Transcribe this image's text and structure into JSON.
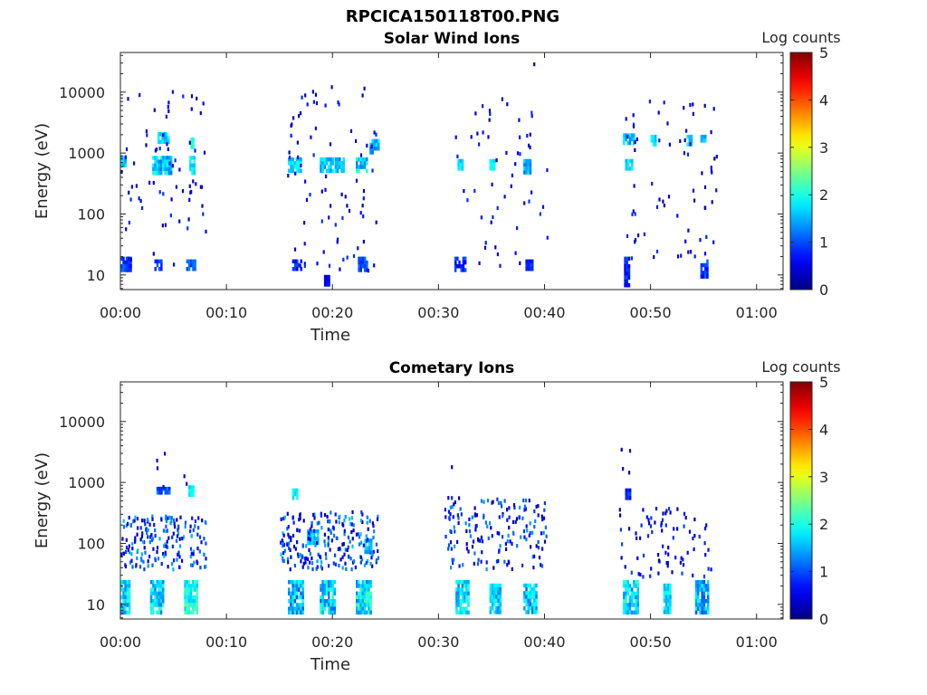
{
  "figure_title": "RPCICA150118T00.PNG",
  "colors": {
    "axis": "#262626",
    "colormap": "jet",
    "background": "#ffffff"
  },
  "chart_data": [
    {
      "type": "heatmap",
      "title": "Solar Wind Ions",
      "xlabel": "Time",
      "ylabel": "Energy (eV)",
      "colorbar_label": "Log counts",
      "colorbar_range": [
        0,
        5
      ],
      "colorbar_ticks": [
        "0",
        "1",
        "2",
        "3",
        "4",
        "5"
      ],
      "x_ticks": [
        "00:00",
        "00:10",
        "00:20",
        "00:30",
        "00:40",
        "00:50",
        "01:00"
      ],
      "y_ticks": [
        "10",
        "100",
        "1000",
        "10000"
      ],
      "xlim_minutes": [
        0,
        62.5
      ],
      "ylim_log10_eV": [
        0.76,
        4.65
      ],
      "y_scale": "log",
      "clusters": [
        {
          "t": [
            0,
            0.5
          ],
          "e": [
            600,
            900
          ],
          "v": [
            1.2,
            1.9
          ]
        },
        {
          "t": [
            3,
            4.8
          ],
          "e": [
            500,
            900
          ],
          "v": [
            1.2,
            2.1
          ]
        },
        {
          "t": [
            3.5,
            4.5
          ],
          "e": [
            1600,
            2200
          ],
          "v": [
            1.3,
            2.0
          ]
        },
        {
          "t": [
            6.5,
            6.9
          ],
          "e": [
            500,
            900
          ],
          "v": [
            1.5,
            2.2
          ]
        },
        {
          "t": [
            6.6,
            6.9
          ],
          "e": [
            1200,
            1800
          ],
          "v": [
            1.8,
            2.3
          ]
        },
        {
          "t": [
            15.8,
            17.0
          ],
          "e": [
            550,
            850
          ],
          "v": [
            1.3,
            2.0
          ]
        },
        {
          "t": [
            18.8,
            20.0
          ],
          "e": [
            550,
            850
          ],
          "v": [
            1.2,
            2.0
          ]
        },
        {
          "t": [
            20.2,
            21.0
          ],
          "e": [
            550,
            850
          ],
          "v": [
            1.2,
            1.8
          ]
        },
        {
          "t": [
            22.2,
            23.2
          ],
          "e": [
            500,
            850
          ],
          "v": [
            1.2,
            2.1
          ]
        },
        {
          "t": [
            23.5,
            24.3
          ],
          "e": [
            1100,
            1700
          ],
          "v": [
            1.2,
            1.9
          ]
        },
        {
          "t": [
            31.8,
            32.2
          ],
          "e": [
            550,
            800
          ],
          "v": [
            1.4,
            2.0
          ]
        },
        {
          "t": [
            34.8,
            35.2
          ],
          "e": [
            600,
            800
          ],
          "v": [
            1.6,
            2.1
          ]
        },
        {
          "t": [
            38,
            38.6
          ],
          "e": [
            500,
            800
          ],
          "v": [
            1.2,
            1.8
          ]
        },
        {
          "t": [
            47.4,
            48.4
          ],
          "e": [
            1500,
            2100
          ],
          "v": [
            1.3,
            2.0
          ]
        },
        {
          "t": [
            47.6,
            48.2
          ],
          "e": [
            550,
            800
          ],
          "v": [
            1.4,
            2.0
          ]
        },
        {
          "t": [
            50,
            50.5
          ],
          "e": [
            1400,
            2000
          ],
          "v": [
            1.4,
            2.0
          ]
        },
        {
          "t": [
            53.4,
            53.9
          ],
          "e": [
            1500,
            2000
          ],
          "v": [
            1.4,
            1.9
          ]
        },
        {
          "t": [
            54.7,
            55.1
          ],
          "e": [
            1600,
            2000
          ],
          "v": [
            1.3,
            1.8
          ]
        },
        {
          "t": [
            0,
            0.6
          ],
          "e": [
            12,
            20
          ],
          "v": [
            0.6,
            1.2
          ]
        },
        {
          "t": [
            0.5,
            1.0
          ],
          "e": [
            12,
            20
          ],
          "v": [
            0.6,
            1.0
          ]
        },
        {
          "t": [
            3.2,
            3.8
          ],
          "e": [
            12,
            18
          ],
          "v": [
            0.6,
            1.1
          ]
        },
        {
          "t": [
            6.2,
            7.0
          ],
          "e": [
            12,
            18
          ],
          "v": [
            0.8,
            1.3
          ]
        },
        {
          "t": [
            16.2,
            17.0
          ],
          "e": [
            12,
            18
          ],
          "v": [
            0.5,
            1.1
          ]
        },
        {
          "t": [
            19.2,
            19.6
          ],
          "e": [
            7,
            10
          ],
          "v": [
            0.4,
            0.9
          ]
        },
        {
          "t": [
            22.4,
            23.2
          ],
          "e": [
            12,
            20
          ],
          "v": [
            0.8,
            1.3
          ]
        },
        {
          "t": [
            31.5,
            32.5
          ],
          "e": [
            12,
            20
          ],
          "v": [
            0.6,
            1.1
          ]
        },
        {
          "t": [
            38.2,
            38.8
          ],
          "e": [
            12,
            18
          ],
          "v": [
            0.6,
            1.0
          ]
        },
        {
          "t": [
            47.5,
            48.0
          ],
          "e": [
            7,
            20
          ],
          "v": [
            0.5,
            1.1
          ]
        },
        {
          "t": [
            54.7,
            55.3
          ],
          "e": [
            10,
            18
          ],
          "v": [
            0.6,
            1.2
          ]
        }
      ],
      "scatter": [
        {
          "t": [
            0,
            8.2
          ],
          "e": [
            15,
            14000
          ],
          "n": 70,
          "v": [
            0.2,
            0.9
          ]
        },
        {
          "t": [
            15.7,
            24.3
          ],
          "e": [
            12,
            14000
          ],
          "n": 80,
          "v": [
            0.2,
            0.9
          ]
        },
        {
          "t": [
            31.5,
            40.2
          ],
          "e": [
            15,
            9000
          ],
          "n": 55,
          "v": [
            0.2,
            0.9
          ]
        },
        {
          "t": [
            47.2,
            56.2
          ],
          "e": [
            20,
            9000
          ],
          "n": 70,
          "v": [
            0.2,
            0.9
          ]
        },
        {
          "t": [
            38.8,
            39.1
          ],
          "e": [
            30000,
            32000
          ],
          "n": 1,
          "v": [
            0.3,
            0.4
          ]
        }
      ]
    },
    {
      "type": "heatmap",
      "title": "Cometary Ions",
      "xlabel": "Time",
      "ylabel": "Energy (eV)",
      "colorbar_label": "Log counts",
      "colorbar_range": [
        0,
        5
      ],
      "colorbar_ticks": [
        "0",
        "1",
        "2",
        "3",
        "4",
        "5"
      ],
      "x_ticks": [
        "00:00",
        "00:10",
        "00:20",
        "00:30",
        "00:40",
        "00:50",
        "01:00"
      ],
      "y_ticks": [
        "10",
        "100",
        "1000",
        "10000"
      ],
      "xlim_minutes": [
        0,
        62.5
      ],
      "ylim_log10_eV": [
        0.76,
        4.65
      ],
      "y_scale": "log",
      "clusters": [
        {
          "t": [
            0,
            0.8
          ],
          "e": [
            7,
            25
          ],
          "v": [
            1.2,
            2.2
          ]
        },
        {
          "t": [
            2.8,
            4.0
          ],
          "e": [
            7,
            25
          ],
          "v": [
            1.2,
            2.2
          ]
        },
        {
          "t": [
            6.0,
            7.2
          ],
          "e": [
            7,
            25
          ],
          "v": [
            1.6,
            2.4
          ]
        },
        {
          "t": [
            15.8,
            17.2
          ],
          "e": [
            7,
            25
          ],
          "v": [
            1.0,
            2.1
          ]
        },
        {
          "t": [
            18.8,
            20.2
          ],
          "e": [
            7,
            25
          ],
          "v": [
            1.1,
            2.2
          ]
        },
        {
          "t": [
            22.2,
            23.6
          ],
          "e": [
            7,
            25
          ],
          "v": [
            1.2,
            2.3
          ]
        },
        {
          "t": [
            31.6,
            32.8
          ],
          "e": [
            7,
            25
          ],
          "v": [
            1.2,
            2.2
          ]
        },
        {
          "t": [
            34.8,
            35.8
          ],
          "e": [
            8,
            22
          ],
          "v": [
            1.2,
            2.0
          ]
        },
        {
          "t": [
            38.0,
            39.2
          ],
          "e": [
            8,
            22
          ],
          "v": [
            1.0,
            2.0
          ]
        },
        {
          "t": [
            47.4,
            48.8
          ],
          "e": [
            7,
            25
          ],
          "v": [
            1.2,
            2.2
          ]
        },
        {
          "t": [
            51.2,
            51.8
          ],
          "e": [
            7,
            22
          ],
          "v": [
            1.4,
            2.1
          ]
        },
        {
          "t": [
            54.2,
            55.4
          ],
          "e": [
            7,
            25
          ],
          "v": [
            1.0,
            2.0
          ]
        },
        {
          "t": [
            17.6,
            18.6
          ],
          "e": [
            100,
            170
          ],
          "v": [
            1.2,
            1.9
          ]
        },
        {
          "t": [
            23.0,
            23.6
          ],
          "e": [
            70,
            120
          ],
          "v": [
            1.3,
            1.8
          ]
        },
        {
          "t": [
            3.4,
            4.6
          ],
          "e": [
            700,
            850
          ],
          "v": [
            0.8,
            1.3
          ]
        },
        {
          "t": [
            6.4,
            6.8
          ],
          "e": [
            650,
            900
          ],
          "v": [
            1.6,
            2.0
          ]
        },
        {
          "t": [
            16.2,
            16.6
          ],
          "e": [
            550,
            800
          ],
          "v": [
            1.6,
            2.0
          ]
        },
        {
          "t": [
            47.6,
            48.0
          ],
          "e": [
            600,
            800
          ],
          "v": [
            0.6,
            1.0
          ]
        }
      ],
      "scatter": [
        {
          "t": [
            0,
            8.0
          ],
          "e": [
            40,
            300
          ],
          "n": 180,
          "v": [
            0.2,
            1.6
          ]
        },
        {
          "t": [
            15.0,
            24.3
          ],
          "e": [
            40,
            350
          ],
          "n": 220,
          "v": [
            0.2,
            1.6
          ]
        },
        {
          "t": [
            30.5,
            40.3
          ],
          "e": [
            40,
            600
          ],
          "n": 170,
          "v": [
            0.2,
            1.4
          ]
        },
        {
          "t": [
            46.8,
            56.0
          ],
          "e": [
            30,
            400
          ],
          "n": 80,
          "v": [
            0.2,
            1.0
          ]
        },
        {
          "t": [
            3,
            8
          ],
          "e": [
            700,
            3800
          ],
          "n": 6,
          "v": [
            0.2,
            0.7
          ]
        },
        {
          "t": [
            47,
            48.5
          ],
          "e": [
            1500,
            4000
          ],
          "n": 4,
          "v": [
            0.2,
            0.6
          ]
        },
        {
          "t": [
            30.8,
            31.2
          ],
          "e": [
            1800,
            2000
          ],
          "n": 1,
          "v": [
            0.3,
            0.4
          ]
        }
      ]
    }
  ]
}
